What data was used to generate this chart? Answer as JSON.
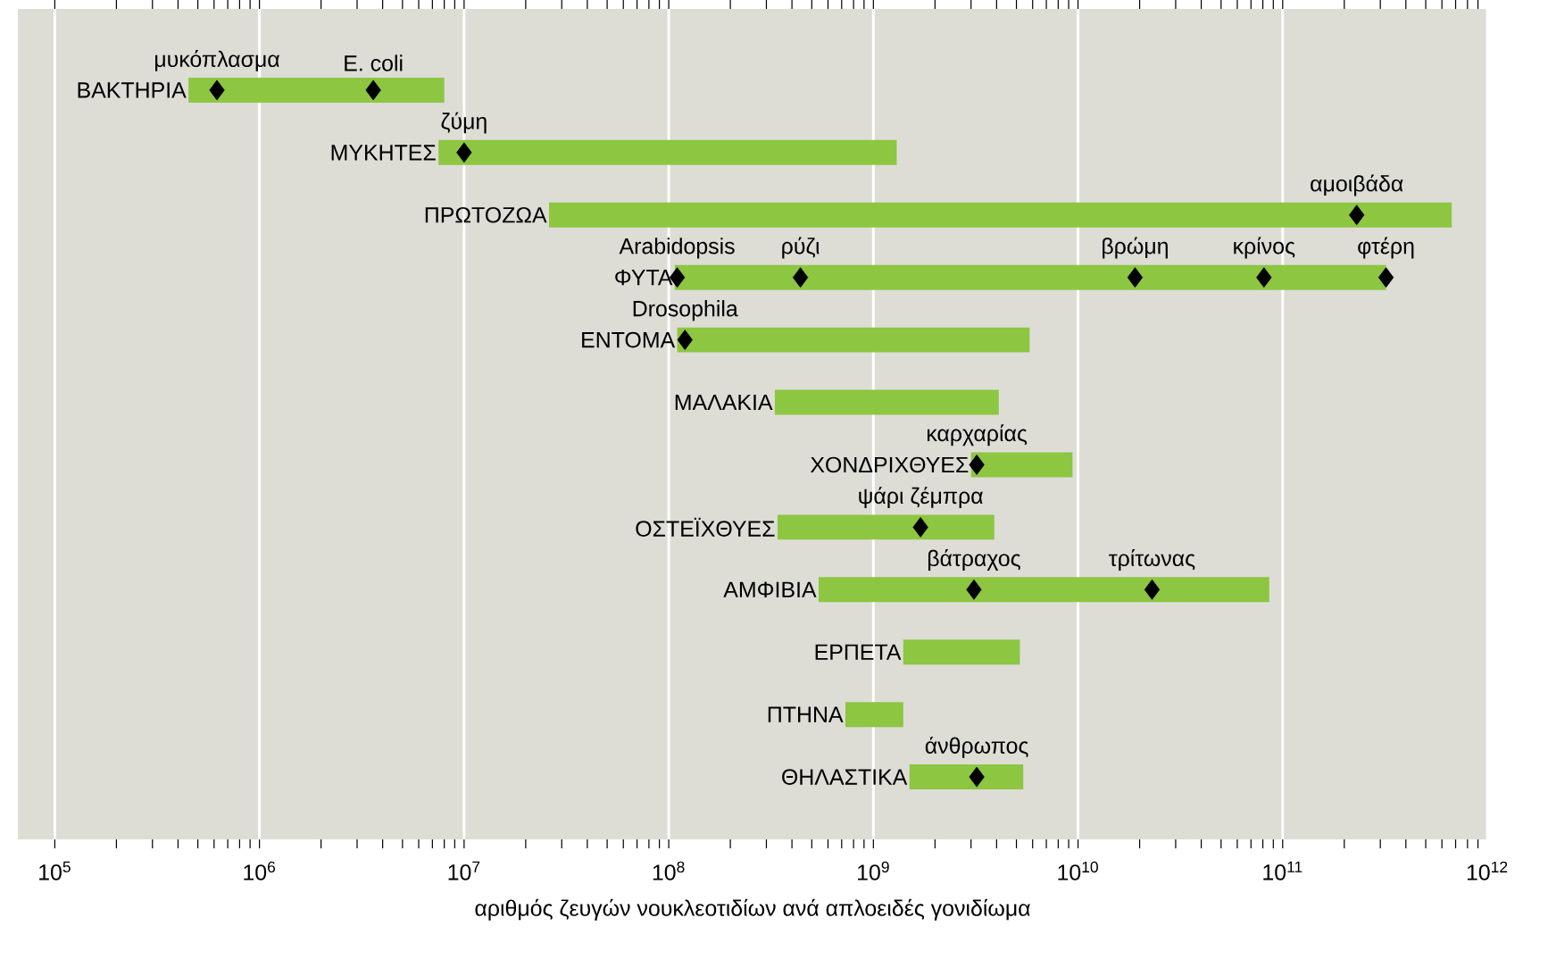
{
  "chart_data": {
    "type": "bar",
    "orientation": "horizontal",
    "xlabel": "αριθμός ζευγών νουκλεοτιδίων ανά απλοειδές γονιδίωμα",
    "categories": [
      "ΒΑΚΤΗΡΙΑ",
      "ΜΥΚΗΤΕΣ",
      "ΠΡΩΤΟΖΩΑ",
      "ΦΥΤΑ",
      "ΕΝΤΟΜΑ",
      "ΜΑΛΑΚΙΑ",
      "ΧΟΝΔΡΙΧΘΥΕΣ",
      "ΟΣΤΕΪΧΘΥΕΣ",
      "ΑΜΦΙΒΙΑ",
      "ΕΡΠΕΤΑ",
      "ΠΤΗΝΑ",
      "ΘΗΛΑΣΤΙΚΑ"
    ],
    "series": [
      {
        "color": "#8dc641",
        "base": [
          450000,
          7500000,
          26000000,
          107000000,
          110000000,
          330000000,
          3000000000,
          340000000,
          540000000,
          1400000000,
          730000000,
          1500000000
        ],
        "values": [
          7550000,
          1292500000,
          669974000000,
          319893000000,
          5690000000,
          3770000000,
          6400000000,
          3560000000,
          85460000000,
          3800000000,
          670000000,
          3900000000
        ]
      },
      {
        "type": "scatter",
        "color": "#000000",
        "marker": "diamond",
        "x": [
          "ΒΑΚΤΗΡΙΑ",
          "ΒΑΚΤΗΡΙΑ",
          "ΜΥΚΗΤΕΣ",
          "ΠΡΩΤΟΖΩΑ",
          "ΦΥΤΑ",
          "ΦΥΤΑ",
          "ΦΥΤΑ",
          "ΦΥΤΑ",
          "ΦΥΤΑ",
          "ΕΝΤΟΜΑ",
          "ΧΟΝΔΡΙΧΘΥΕΣ",
          "ΟΣΤΕΪΧΘΥΕΣ",
          "ΑΜΦΙΒΙΑ",
          "ΑΜΦΙΒΙΑ",
          "ΘΗΛΑΣΤΙΚΑ"
        ],
        "values": [
          620000,
          3600000,
          10000000,
          230000000000,
          110000000,
          440000000,
          19000000000,
          81000000000,
          320000000000,
          120000000,
          3200000000,
          1700000000,
          3100000000,
          23000000000,
          3200000000
        ]
      }
    ],
    "log": "x",
    "xlim": [
      66000,
      1000000000000
    ],
    "xticks": [
      {
        "value": 100000,
        "label": "10$^{5}$"
      },
      {
        "value": 1000000,
        "label": "10$^{6}$"
      },
      {
        "value": 10000000,
        "label": "10$^{7}$"
      },
      {
        "value": 100000000,
        "label": "10$^{8}$"
      },
      {
        "value": 1000000000,
        "label": "10$^{9}$"
      },
      {
        "value": 10000000000,
        "label": "10$^{10}$"
      },
      {
        "value": 100000000000,
        "label": "10$^{11}$"
      },
      {
        "value": 1000000000000,
        "label": "10$^{12}$"
      }
    ],
    "grid": "x",
    "annotations": [
      {
        "text": "μυκόπλασμα",
        "x": 620000,
        "y": "ΒΑΚΤΗΡΙΑ"
      },
      {
        "text": "E. coli",
        "x": 3600000,
        "y": "ΒΑΚΤΗΡΙΑ"
      },
      {
        "text": "ζύμη",
        "x": 10000000,
        "y": "ΜΥΚΗΤΕΣ"
      },
      {
        "text": "αμοιβάδα",
        "x": 230000000000,
        "y": "ΠΡΩΤΟΖΩΑ"
      },
      {
        "text": "Arabidopsis",
        "x": 110000000,
        "y": "ΦΥΤΑ"
      },
      {
        "text": "ρύζι",
        "x": 440000000,
        "y": "ΦΥΤΑ"
      },
      {
        "text": "βρώμη",
        "x": 19000000000,
        "y": "ΦΥΤΑ"
      },
      {
        "text": "κρίνος",
        "x": 81000000000,
        "y": "ΦΥΤΑ"
      },
      {
        "text": "φτέρη",
        "x": 320000000000,
        "y": "ΦΥΤΑ"
      },
      {
        "text": "Drosophila",
        "x": 120000000,
        "y": "ΕΝΤΟΜΑ"
      },
      {
        "text": "καρχαρίας",
        "x": 3200000000,
        "y": "ΧΟΝΔΡΙΧΘΥΕΣ"
      },
      {
        "text": "ψάρι ζέμπρα",
        "x": 1700000000,
        "y": "ΟΣΤΕΪΧΘΥΕΣ"
      },
      {
        "text": "βάτραχος",
        "x": 3100000000,
        "y": "ΑΜΦΙΒΙΑ"
      },
      {
        "text": "τρίτωνας",
        "x": 23000000000,
        "y": "ΑΜΦΙΒΙΑ"
      },
      {
        "text": "άνθρωπος",
        "x": 3200000000,
        "y": "ΘΗΛΑΣΤΙΚΑ"
      }
    ]
  }
}
